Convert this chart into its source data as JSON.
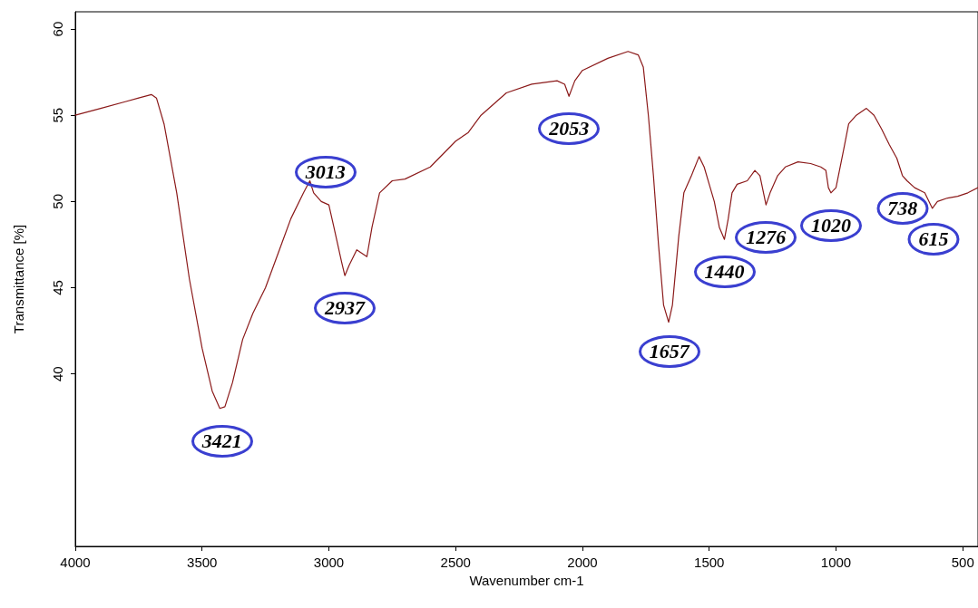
{
  "chart_data": {
    "type": "line",
    "xlabel": "Wavenumber cm-1",
    "ylabel": "Transmittance [%]",
    "xlim": [
      4000,
      440
    ],
    "xticks": [
      4000,
      3500,
      3000,
      2500,
      2000,
      1500,
      1000,
      500
    ],
    "ylim": [
      30,
      61
    ],
    "yticks": [
      40,
      45,
      50,
      55,
      60
    ],
    "grid": false,
    "marker": "none",
    "line_style": "solid",
    "x": [
      4000,
      3900,
      3800,
      3750,
      3700,
      3680,
      3650,
      3600,
      3550,
      3500,
      3460,
      3430,
      3410,
      3380,
      3340,
      3300,
      3250,
      3200,
      3150,
      3100,
      3075,
      3060,
      3030,
      3000,
      2980,
      2950,
      2937,
      2920,
      2890,
      2870,
      2850,
      2830,
      2800,
      2750,
      2700,
      2600,
      2500,
      2450,
      2400,
      2300,
      2200,
      2100,
      2070,
      2053,
      2030,
      2000,
      1900,
      1820,
      1780,
      1760,
      1740,
      1720,
      1700,
      1680,
      1660,
      1645,
      1620,
      1600,
      1570,
      1540,
      1520,
      1500,
      1480,
      1460,
      1440,
      1425,
      1410,
      1390,
      1350,
      1320,
      1300,
      1276,
      1260,
      1230,
      1200,
      1150,
      1100,
      1060,
      1040,
      1030,
      1020,
      1000,
      970,
      950,
      920,
      880,
      850,
      820,
      790,
      760,
      738,
      720,
      690,
      650,
      620,
      600,
      560,
      520,
      480,
      440
    ],
    "series": [
      {
        "color": "#8b1a1a",
        "values": [
          55.0,
          55.4,
          55.8,
          56.0,
          56.2,
          56.0,
          54.5,
          50.5,
          45.5,
          41.5,
          39.0,
          38.0,
          38.1,
          39.5,
          42.0,
          43.5,
          45.0,
          47.0,
          49.0,
          50.5,
          51.2,
          50.5,
          50.0,
          49.8,
          48.5,
          46.5,
          45.7,
          46.3,
          47.2,
          47.0,
          46.8,
          48.5,
          50.5,
          51.2,
          51.3,
          52.0,
          53.5,
          54.0,
          55.0,
          56.3,
          56.8,
          57.0,
          56.8,
          56.1,
          57.0,
          57.6,
          58.3,
          58.7,
          58.5,
          57.8,
          55.0,
          51.5,
          47.5,
          44.0,
          43.0,
          44.0,
          48.0,
          50.5,
          51.5,
          52.6,
          52.0,
          51.0,
          50.0,
          48.5,
          47.8,
          49.0,
          50.5,
          51.0,
          51.2,
          51.8,
          51.5,
          49.8,
          50.5,
          51.5,
          52.0,
          52.3,
          52.2,
          52.0,
          51.8,
          50.8,
          50.5,
          50.8,
          53.0,
          54.5,
          55.0,
          55.4,
          55.0,
          54.2,
          53.3,
          52.5,
          51.5,
          51.2,
          50.8,
          50.5,
          49.6,
          50.0,
          50.2,
          50.3,
          50.5,
          50.8
        ]
      }
    ],
    "annotations": [
      {
        "text": "3421",
        "x": 3421,
        "y": 38.0
      },
      {
        "text": "3013",
        "x": 3013,
        "y": 49.9
      },
      {
        "text": "2937",
        "x": 2937,
        "y": 45.7
      },
      {
        "text": "2053",
        "x": 2053,
        "y": 56.1
      },
      {
        "text": "1657",
        "x": 1657,
        "y": 43.2
      },
      {
        "text": "1440",
        "x": 1440,
        "y": 47.8
      },
      {
        "text": "1276",
        "x": 1276,
        "y": 49.8
      },
      {
        "text": "1020",
        "x": 1020,
        "y": 50.5
      },
      {
        "text": "738",
        "x": 738,
        "y": 51.5
      },
      {
        "text": "615",
        "x": 615,
        "y": 49.7
      }
    ]
  }
}
